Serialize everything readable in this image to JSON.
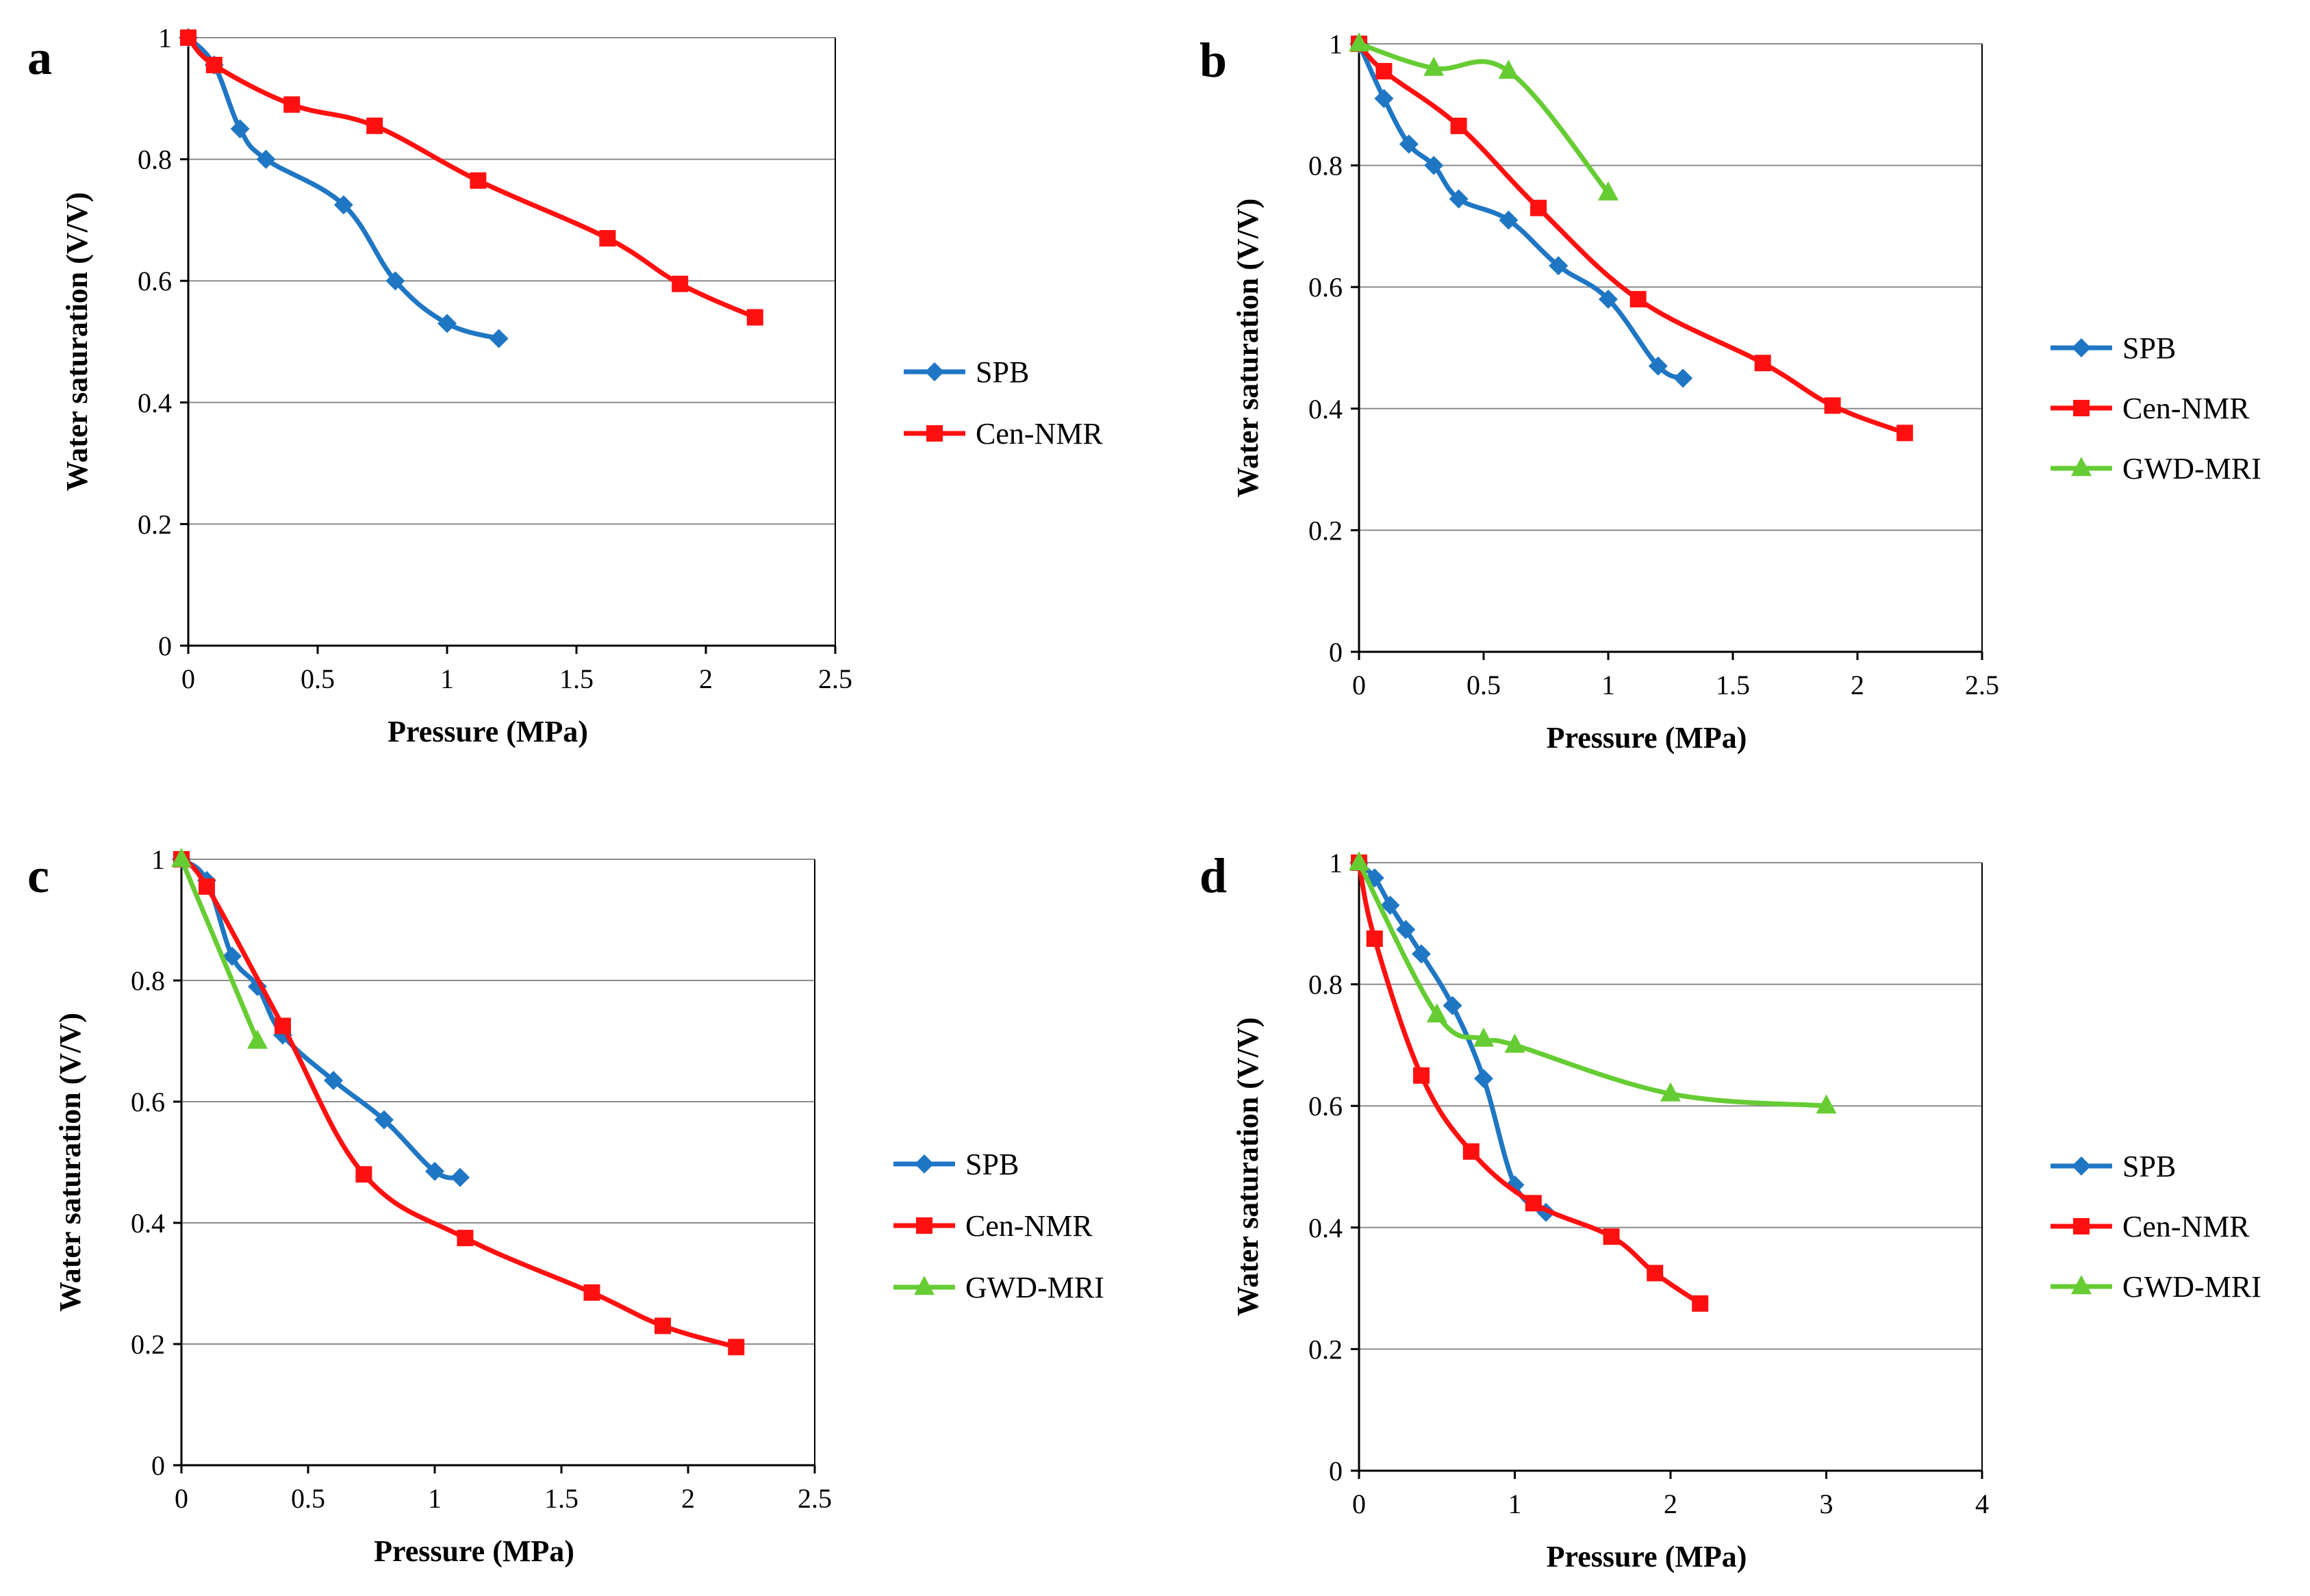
{
  "chart_data": [
    {
      "panel": "a",
      "type": "line",
      "xlabel": "Pressure (MPa)",
      "ylabel": "Water saturation (V/V)",
      "xlim": [
        0,
        2.5
      ],
      "ylim": [
        0,
        1
      ],
      "xticks": [
        "0",
        "0.5",
        "1",
        "1.5",
        "2",
        "2.5"
      ],
      "yticks": [
        "0",
        "0.2",
        "0.4",
        "0.6",
        "0.8",
        "1"
      ],
      "grid": "horizontal",
      "legend": "right",
      "series": [
        {
          "name": "SPB",
          "color": "#1f77c4",
          "marker": "diamond",
          "x": [
            0,
            0.1,
            0.2,
            0.3,
            0.6,
            0.8,
            1.0,
            1.2
          ],
          "y": [
            1.0,
            0.955,
            0.85,
            0.8,
            0.725,
            0.6,
            0.53,
            0.505
          ]
        },
        {
          "name": "Cen-NMR",
          "color": "#ff1010",
          "marker": "square",
          "x": [
            0,
            0.1,
            0.4,
            0.72,
            1.12,
            1.62,
            1.9,
            2.19
          ],
          "y": [
            1.0,
            0.955,
            0.89,
            0.855,
            0.765,
            0.67,
            0.595,
            0.54
          ]
        }
      ]
    },
    {
      "panel": "b",
      "type": "line",
      "xlabel": "Pressure (MPa)",
      "ylabel": "Water saturation (V/V)",
      "xlim": [
        0,
        2.5
      ],
      "ylim": [
        0,
        1
      ],
      "xticks": [
        "0",
        "0.5",
        "1",
        "1.5",
        "2",
        "2.5"
      ],
      "yticks": [
        "0",
        "0.2",
        "0.4",
        "0.6",
        "0.8",
        "1"
      ],
      "grid": "horizontal",
      "legend": "right",
      "series": [
        {
          "name": "SPB",
          "color": "#1f77c4",
          "marker": "diamond",
          "x": [
            0,
            0.1,
            0.2,
            0.3,
            0.4,
            0.6,
            0.8,
            1.0,
            1.2,
            1.3
          ],
          "y": [
            1.0,
            0.91,
            0.835,
            0.8,
            0.745,
            0.71,
            0.635,
            0.58,
            0.47,
            0.45
          ]
        },
        {
          "name": "Cen-NMR",
          "color": "#ff1010",
          "marker": "square",
          "x": [
            0,
            0.1,
            0.4,
            0.72,
            1.12,
            1.62,
            1.9,
            2.19
          ],
          "y": [
            1.0,
            0.955,
            0.865,
            0.73,
            0.58,
            0.475,
            0.405,
            0.36
          ]
        },
        {
          "name": "GWD-MRI",
          "color": "#66cc33",
          "marker": "triangle",
          "x": [
            0,
            0.3,
            0.6,
            1.0
          ],
          "y": [
            1.0,
            0.96,
            0.955,
            0.755
          ]
        }
      ]
    },
    {
      "panel": "c",
      "type": "line",
      "xlabel": "Pressure (MPa)",
      "ylabel": "Water saturation (V/V)",
      "xlim": [
        0,
        2.5
      ],
      "ylim": [
        0,
        1
      ],
      "xticks": [
        "0",
        "0.5",
        "1",
        "1.5",
        "2",
        "2.5"
      ],
      "yticks": [
        "0",
        "0.2",
        "0.4",
        "0.6",
        "0.8",
        "1"
      ],
      "grid": "horizontal",
      "legend": "right",
      "series": [
        {
          "name": "SPB",
          "color": "#1f77c4",
          "marker": "diamond",
          "x": [
            0,
            0.1,
            0.2,
            0.3,
            0.4,
            0.6,
            0.8,
            1.0,
            1.1
          ],
          "y": [
            1.0,
            0.965,
            0.84,
            0.79,
            0.71,
            0.635,
            0.57,
            0.485,
            0.475
          ]
        },
        {
          "name": "Cen-NMR",
          "color": "#ff1010",
          "marker": "square",
          "x": [
            0,
            0.1,
            0.4,
            0.72,
            1.12,
            1.62,
            1.9,
            2.19
          ],
          "y": [
            1.0,
            0.955,
            0.725,
            0.48,
            0.375,
            0.285,
            0.23,
            0.195
          ]
        },
        {
          "name": "GWD-MRI",
          "color": "#66cc33",
          "marker": "triangle",
          "x": [
            0,
            0.3
          ],
          "y": [
            1.0,
            0.7
          ]
        }
      ]
    },
    {
      "panel": "d",
      "type": "line",
      "xlabel": "Pressure (MPa)",
      "ylabel": "Water saturation (V/V)",
      "xlim": [
        0,
        4
      ],
      "ylim": [
        0,
        1
      ],
      "xticks": [
        "0",
        "1",
        "2",
        "3",
        "4"
      ],
      "yticks": [
        "0",
        "0.2",
        "0.4",
        "0.6",
        "0.8",
        "1"
      ],
      "grid": "horizontal",
      "legend": "right",
      "series": [
        {
          "name": "SPB",
          "color": "#1f77c4",
          "marker": "diamond",
          "x": [
            0,
            0.1,
            0.2,
            0.3,
            0.4,
            0.6,
            0.8,
            1.0,
            1.2
          ],
          "y": [
            1.0,
            0.975,
            0.93,
            0.89,
            0.85,
            0.765,
            0.645,
            0.47,
            0.425
          ]
        },
        {
          "name": "Cen-NMR",
          "color": "#ff1010",
          "marker": "square",
          "x": [
            0,
            0.1,
            0.4,
            0.72,
            1.12,
            1.62,
            1.9,
            2.19
          ],
          "y": [
            1.0,
            0.875,
            0.65,
            0.525,
            0.44,
            0.385,
            0.325,
            0.275
          ]
        },
        {
          "name": "GWD-MRI",
          "color": "#66cc33",
          "marker": "triangle",
          "x": [
            0,
            0.5,
            0.8,
            1.0,
            2.0,
            3.0
          ],
          "y": [
            1.0,
            0.75,
            0.71,
            0.7,
            0.62,
            0.6
          ]
        }
      ]
    }
  ]
}
